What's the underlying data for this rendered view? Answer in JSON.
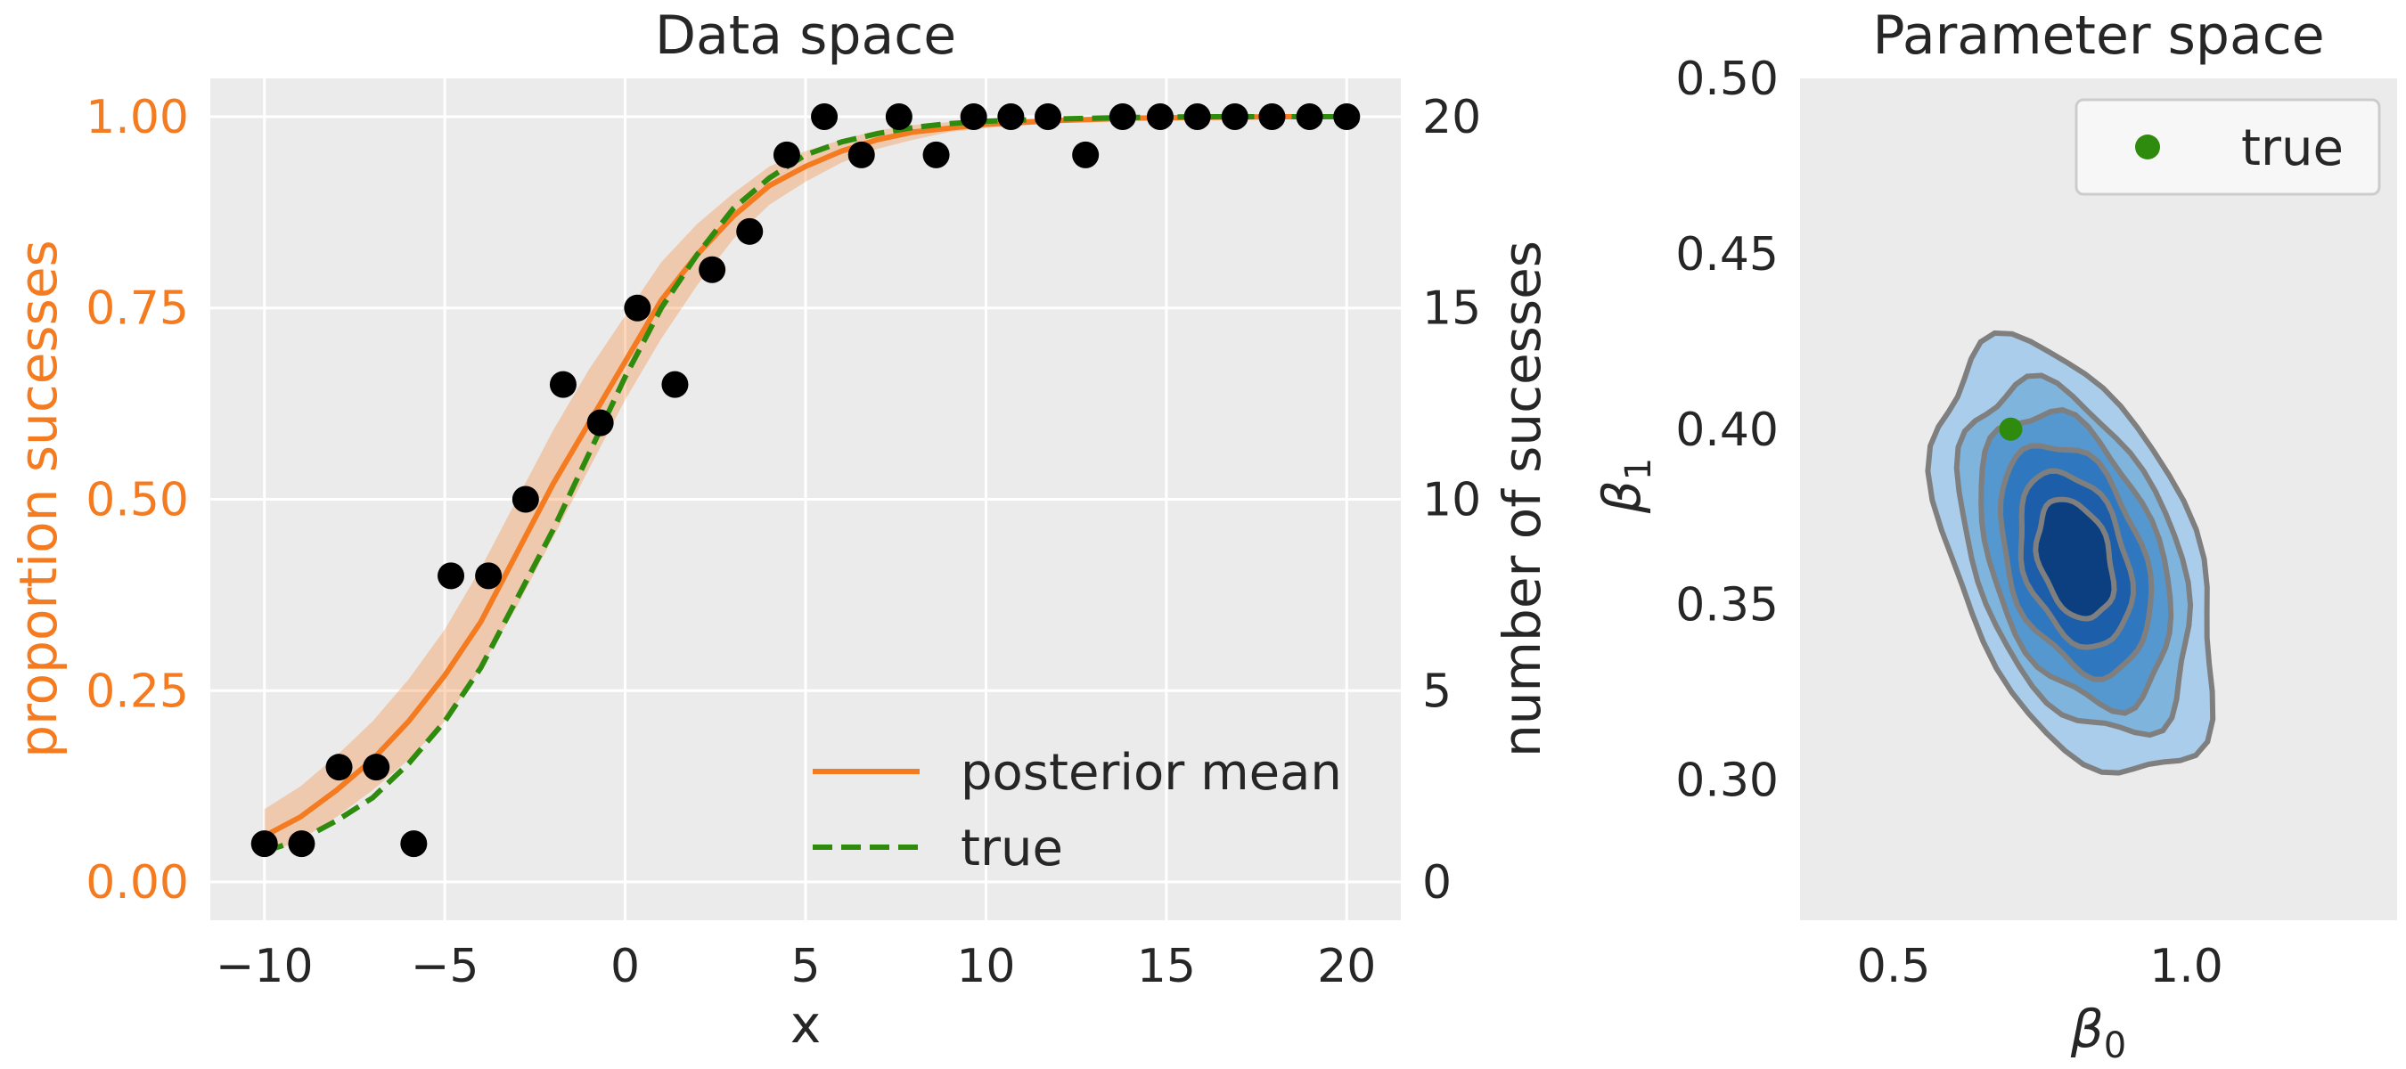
{
  "colors": {
    "orange": "#f47b20",
    "green": "#2e8b0e",
    "dark": "#262626",
    "panel_bg": "#ebebeb",
    "grid": "#ffffff",
    "contour_line": "#7f7f7f",
    "contour_fills": [
      "#d0e2f5",
      "#a9cdeb",
      "#7fb4dd",
      "#5597cf",
      "#2f78c0",
      "#1c5ea9",
      "#0b3f7f"
    ]
  },
  "chart_data": [
    {
      "type": "scatter",
      "title": "Data space",
      "xlabel": "x",
      "ylabel": "proportion sucesses",
      "ylabel_right": "number of sucesses",
      "xlim": [
        -11.5,
        21.5
      ],
      "ylim": [
        -0.05,
        1.05
      ],
      "ylim_right": [
        -1,
        21
      ],
      "xticks": [
        -10,
        -5,
        0,
        5,
        10,
        15,
        20
      ],
      "xtick_labels": [
        "−10",
        "−5",
        "0",
        "5",
        "10",
        "15",
        "20"
      ],
      "yticks": [
        0.0,
        0.25,
        0.5,
        0.75,
        1.0
      ],
      "ytick_labels": [
        "0.00",
        "0.25",
        "0.50",
        "0.75",
        "1.00"
      ],
      "yticks_right": [
        0,
        5,
        10,
        15,
        20
      ],
      "ytick_labels_right": [
        "0",
        "5",
        "10",
        "15",
        "20"
      ],
      "grid": true,
      "legend": {
        "location": "lower-right",
        "entries": [
          {
            "label": "posterior mean",
            "style": "solid",
            "color": "#f47b20"
          },
          {
            "label": "true",
            "style": "dashed",
            "color": "#2e8b0e"
          }
        ]
      },
      "points": {
        "x": [
          -10,
          -8.97,
          -7.93,
          -6.9,
          -5.86,
          -4.83,
          -3.79,
          -2.76,
          -1.72,
          -0.69,
          0.34,
          1.38,
          2.41,
          3.45,
          4.48,
          5.52,
          6.55,
          7.59,
          8.62,
          9.66,
          10.69,
          11.72,
          12.76,
          13.79,
          14.83,
          15.86,
          16.9,
          17.93,
          18.97,
          20
        ],
        "y": [
          0.05,
          0.05,
          0.15,
          0.15,
          0.05,
          0.4,
          0.4,
          0.5,
          0.65,
          0.6,
          0.75,
          0.65,
          0.8,
          0.85,
          0.95,
          1.0,
          0.95,
          1.0,
          0.95,
          1.0,
          1.0,
          1.0,
          0.95,
          1.0,
          1.0,
          1.0,
          1.0,
          1.0,
          1.0,
          1.0
        ]
      },
      "curves": {
        "x": [
          -10,
          -9,
          -8,
          -7,
          -6,
          -5,
          -4,
          -3,
          -2,
          -1,
          0,
          1,
          2,
          3,
          4,
          5,
          6,
          7,
          8,
          9,
          10,
          12,
          14,
          16,
          18,
          20
        ],
        "posterior_mean": [
          0.06,
          0.085,
          0.12,
          0.16,
          0.21,
          0.27,
          0.34,
          0.43,
          0.52,
          0.6,
          0.68,
          0.76,
          0.82,
          0.87,
          0.91,
          0.935,
          0.955,
          0.97,
          0.98,
          0.985,
          0.99,
          0.995,
          0.998,
          0.999,
          1.0,
          1.0
        ],
        "band_lower": [
          0.035,
          0.055,
          0.085,
          0.12,
          0.16,
          0.21,
          0.28,
          0.36,
          0.45,
          0.54,
          0.63,
          0.71,
          0.78,
          0.84,
          0.885,
          0.915,
          0.94,
          0.958,
          0.97,
          0.98,
          0.985,
          0.992,
          0.996,
          0.998,
          0.999,
          0.999
        ],
        "band_upper": [
          0.095,
          0.125,
          0.165,
          0.21,
          0.265,
          0.33,
          0.41,
          0.5,
          0.59,
          0.67,
          0.74,
          0.81,
          0.86,
          0.9,
          0.935,
          0.955,
          0.97,
          0.982,
          0.989,
          0.993,
          0.996,
          0.998,
          0.999,
          1.0,
          1.0,
          1.0
        ],
        "true": [
          0.04,
          0.055,
          0.08,
          0.11,
          0.155,
          0.21,
          0.28,
          0.37,
          0.46,
          0.56,
          0.66,
          0.75,
          0.82,
          0.88,
          0.92,
          0.95,
          0.967,
          0.978,
          0.986,
          0.991,
          0.994,
          0.997,
          0.999,
          1.0,
          1.0,
          1.0
        ]
      }
    },
    {
      "type": "contour",
      "title": "Parameter space",
      "xlabel": "β",
      "xlabel_subscript": "0",
      "ylabel": "β",
      "ylabel_subscript": "1",
      "xlim": [
        0.34,
        1.36
      ],
      "ylim": [
        0.26,
        0.5
      ],
      "xticks": [
        0.5,
        1.0
      ],
      "xtick_labels": [
        "0.5",
        "1.0"
      ],
      "yticks": [
        0.3,
        0.35,
        0.4,
        0.45,
        0.5
      ],
      "ytick_labels": [
        "0.30",
        "0.35",
        "0.40",
        "0.45",
        "0.50"
      ],
      "grid": false,
      "legend": {
        "location": "top-right",
        "entries": [
          {
            "label": "true",
            "marker": "circle",
            "color": "#2e8b0e"
          }
        ]
      },
      "true_point": {
        "x": 0.7,
        "y": 0.4
      },
      "density_center": {
        "x": 0.81,
        "y": 0.363
      },
      "levels": [
        {
          "level": 1,
          "rx": 0.215,
          "ry": 0.062,
          "tilt": 0.8
        },
        {
          "level": 2,
          "rx": 0.18,
          "ry": 0.05,
          "tilt": 0.75
        },
        {
          "level": 3,
          "rx": 0.15,
          "ry": 0.042,
          "tilt": 0.7
        },
        {
          "level": 4,
          "rx": 0.12,
          "ry": 0.033,
          "tilt": 0.65
        },
        {
          "level": 5,
          "rx": 0.09,
          "ry": 0.025,
          "tilt": 0.6
        },
        {
          "level": 6,
          "rx": 0.062,
          "ry": 0.017,
          "tilt": 0.55
        }
      ]
    }
  ]
}
